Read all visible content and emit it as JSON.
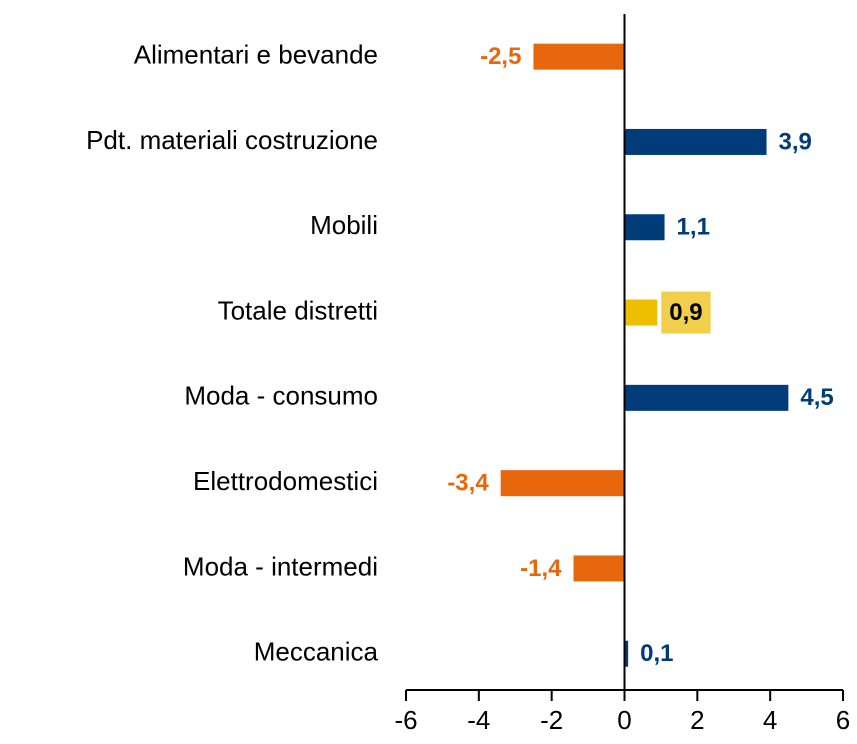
{
  "chart_data": {
    "type": "barh",
    "categories": [
      "Alimentari e bevande",
      "Pdt. materiali costruzione",
      "Mobili",
      "Totale distretti",
      "Moda - consumo",
      "Elettrodomestici",
      "Moda - intermedi",
      "Meccanica"
    ],
    "values": [
      -2.5,
      3.9,
      1.1,
      0.9,
      4.5,
      -3.4,
      -1.4,
      0.1
    ],
    "value_labels": [
      "-2,5",
      "3,9",
      "1,1",
      "0,9",
      "4,5",
      "-3,4",
      "-1,4",
      "0,1"
    ],
    "colors": [
      "#e8670c",
      "#003b7a",
      "#003b7a",
      "#eebf00",
      "#003b7a",
      "#e8670c",
      "#e8670c",
      "#003b7a"
    ],
    "label_colors": [
      "#e8670c",
      "#003b7a",
      "#003b7a",
      "#000000",
      "#003b7a",
      "#e8670c",
      "#e8670c",
      "#003b7a"
    ],
    "label_backgrounds": [
      null,
      null,
      null,
      "#f2cf4a",
      null,
      null,
      null,
      null
    ],
    "xlim": [
      -6,
      6
    ],
    "xticks": [
      -6,
      -4,
      -2,
      0,
      2,
      4,
      6
    ]
  }
}
